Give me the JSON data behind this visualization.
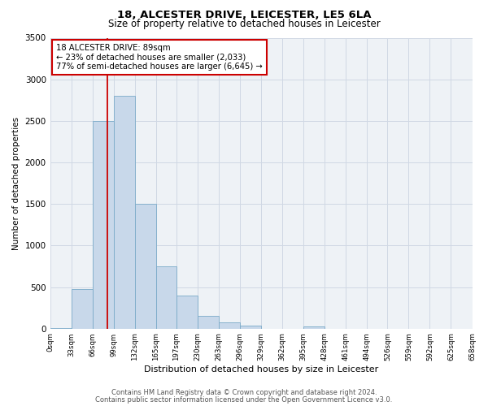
{
  "title": "18, ALCESTER DRIVE, LEICESTER, LE5 6LA",
  "subtitle": "Size of property relative to detached houses in Leicester",
  "xlabel": "Distribution of detached houses by size in Leicester",
  "ylabel": "Number of detached properties",
  "bin_edges": [
    0,
    33,
    66,
    99,
    132,
    165,
    197,
    230,
    263,
    296,
    329,
    362,
    395,
    428,
    461,
    494,
    526,
    559,
    592,
    625,
    658
  ],
  "bin_counts": [
    10,
    480,
    2500,
    2800,
    1500,
    750,
    400,
    150,
    80,
    40,
    0,
    0,
    30,
    0,
    0,
    0,
    0,
    0,
    0,
    0
  ],
  "bar_color": "#c8d8ea",
  "bar_edge_color": "#7aaac8",
  "grid_color": "#d0d8e4",
  "property_sqm": 89,
  "property_line_color": "#cc0000",
  "annotation_box_edge_color": "#cc0000",
  "annotation_text_line1": "18 ALCESTER DRIVE: 89sqm",
  "annotation_text_line2": "← 23% of detached houses are smaller (2,033)",
  "annotation_text_line3": "77% of semi-detached houses are larger (6,645) →",
  "ylim": [
    0,
    3500
  ],
  "yticks": [
    0,
    500,
    1000,
    1500,
    2000,
    2500,
    3000,
    3500
  ],
  "xtick_labels": [
    "0sqm",
    "33sqm",
    "66sqm",
    "99sqm",
    "132sqm",
    "165sqm",
    "197sqm",
    "230sqm",
    "263sqm",
    "296sqm",
    "329sqm",
    "362sqm",
    "395sqm",
    "428sqm",
    "461sqm",
    "494sqm",
    "526sqm",
    "559sqm",
    "592sqm",
    "625sqm",
    "658sqm"
  ],
  "footnote1": "Contains HM Land Registry data © Crown copyright and database right 2024.",
  "footnote2": "Contains public sector information licensed under the Open Government Licence v3.0.",
  "background_color": "#ffffff",
  "plot_bg_color": "#eef2f6"
}
